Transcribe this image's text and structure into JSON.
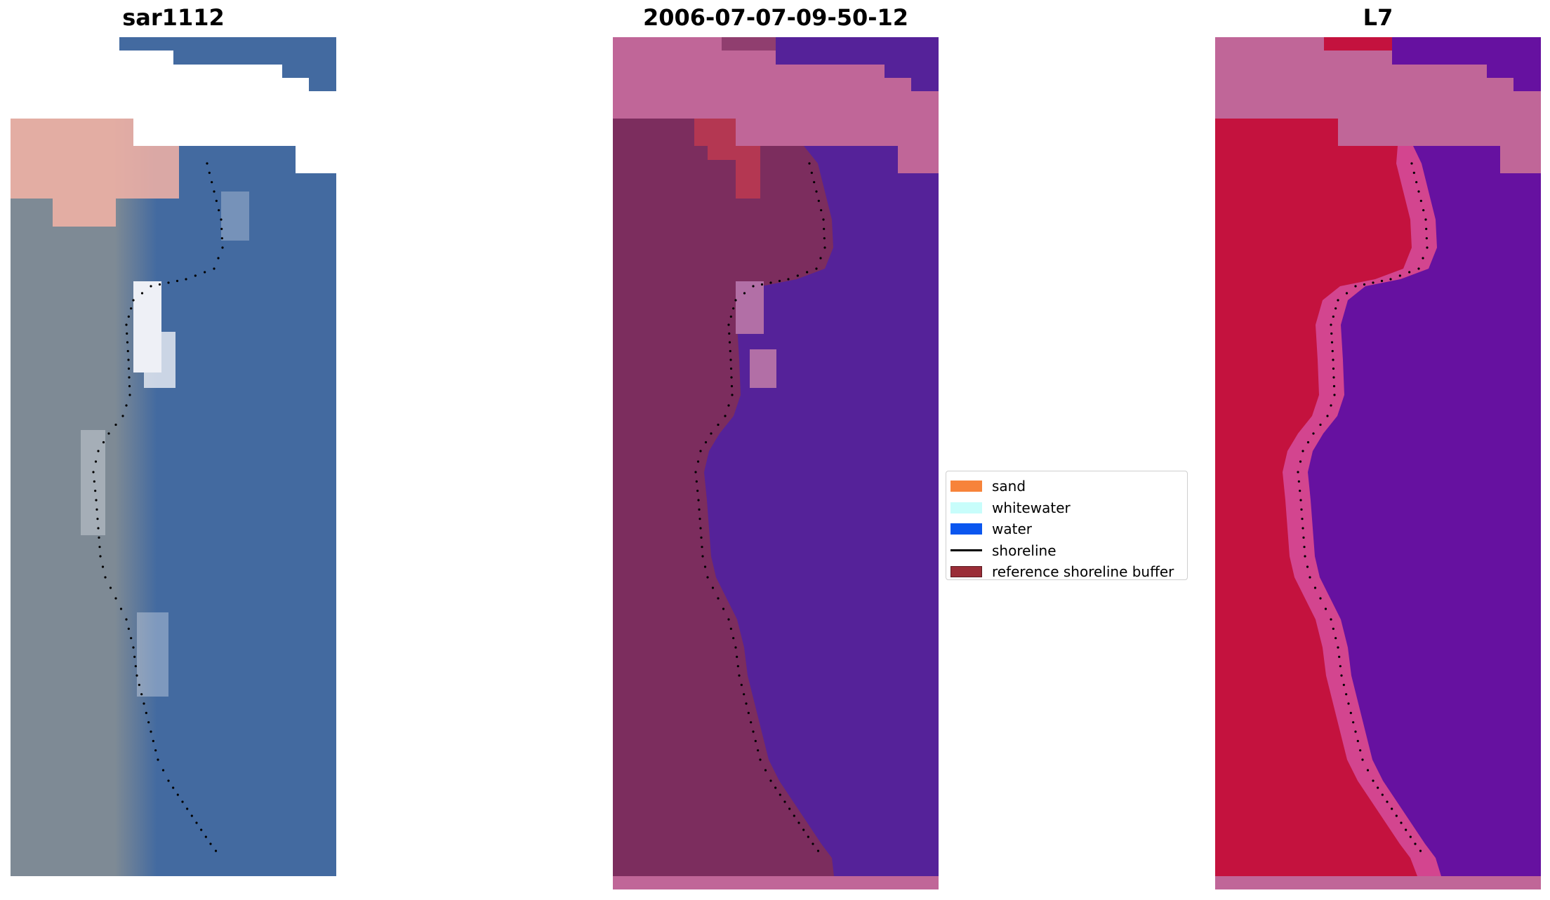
{
  "panels": [
    {
      "title": "sar1112"
    },
    {
      "title": "2006-07-07-09-50-12"
    },
    {
      "title": "L7"
    }
  ],
  "legend": {
    "items": [
      {
        "label": "sand",
        "color": "#f7833a",
        "kind": "patch"
      },
      {
        "label": "whitewater",
        "color": "#c8fdfb",
        "kind": "patch"
      },
      {
        "label": "water",
        "color": "#0a56ef",
        "kind": "patch"
      },
      {
        "label": "shoreline",
        "color": "#000000",
        "kind": "line"
      },
      {
        "label": "reference shoreline buffer",
        "color": "#9a2d37",
        "kind": "patch"
      }
    ]
  },
  "colors": {
    "rgb_land": "#7e8a95",
    "rgb_water": "#436aa0",
    "rgb_sand": "#f4b3a6",
    "rgb_whitewater": "#eef0f6",
    "class_land": "#7c2d5e",
    "class_water": "#552299",
    "class_nodata": "#c06698",
    "class_buffer": "#c23a4f",
    "class_whitewater": "#b26fa6",
    "ndwi_land": "#c4123e",
    "ndwi_water": "#6611a0",
    "ndwi_nodata": "#c06698",
    "ndwi_edge": "#d3458f"
  }
}
